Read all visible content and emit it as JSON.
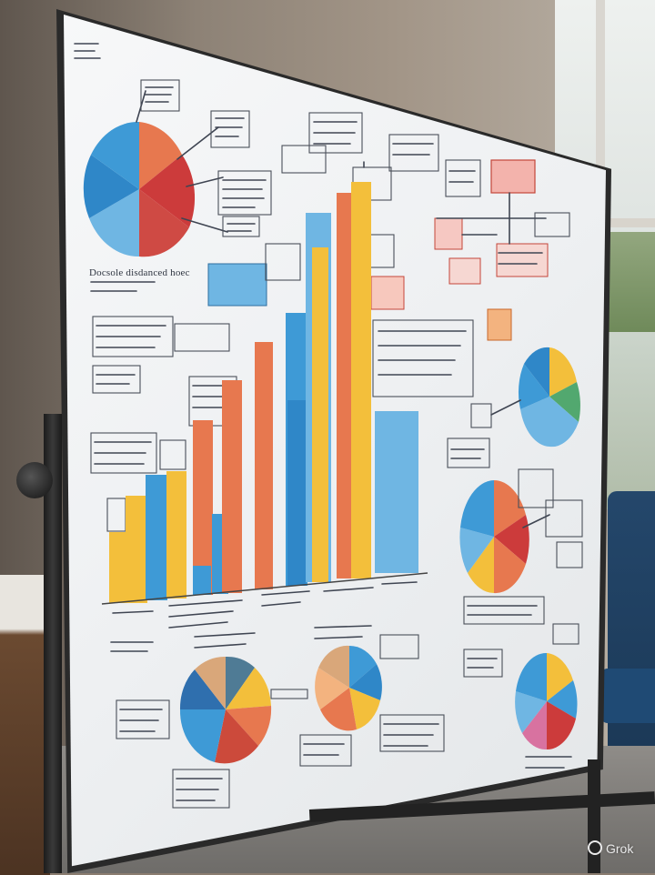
{
  "scene": {
    "caption": "",
    "colors": {
      "blue": "#3e9ad6",
      "light_blue": "#6fb6e3",
      "orange": "#e7784f",
      "red": "#cc3b3b",
      "yellow": "#f3bf3b",
      "green": "#52a86f",
      "tan": "#d9a77a",
      "board": "#f1f3f5",
      "frame": "#2a2a2a"
    }
  },
  "board": {
    "heading_left": "Docsole disdanced hoec"
  },
  "watermark": {
    "text": "Grok",
    "icon": "grok-logo-icon"
  }
}
